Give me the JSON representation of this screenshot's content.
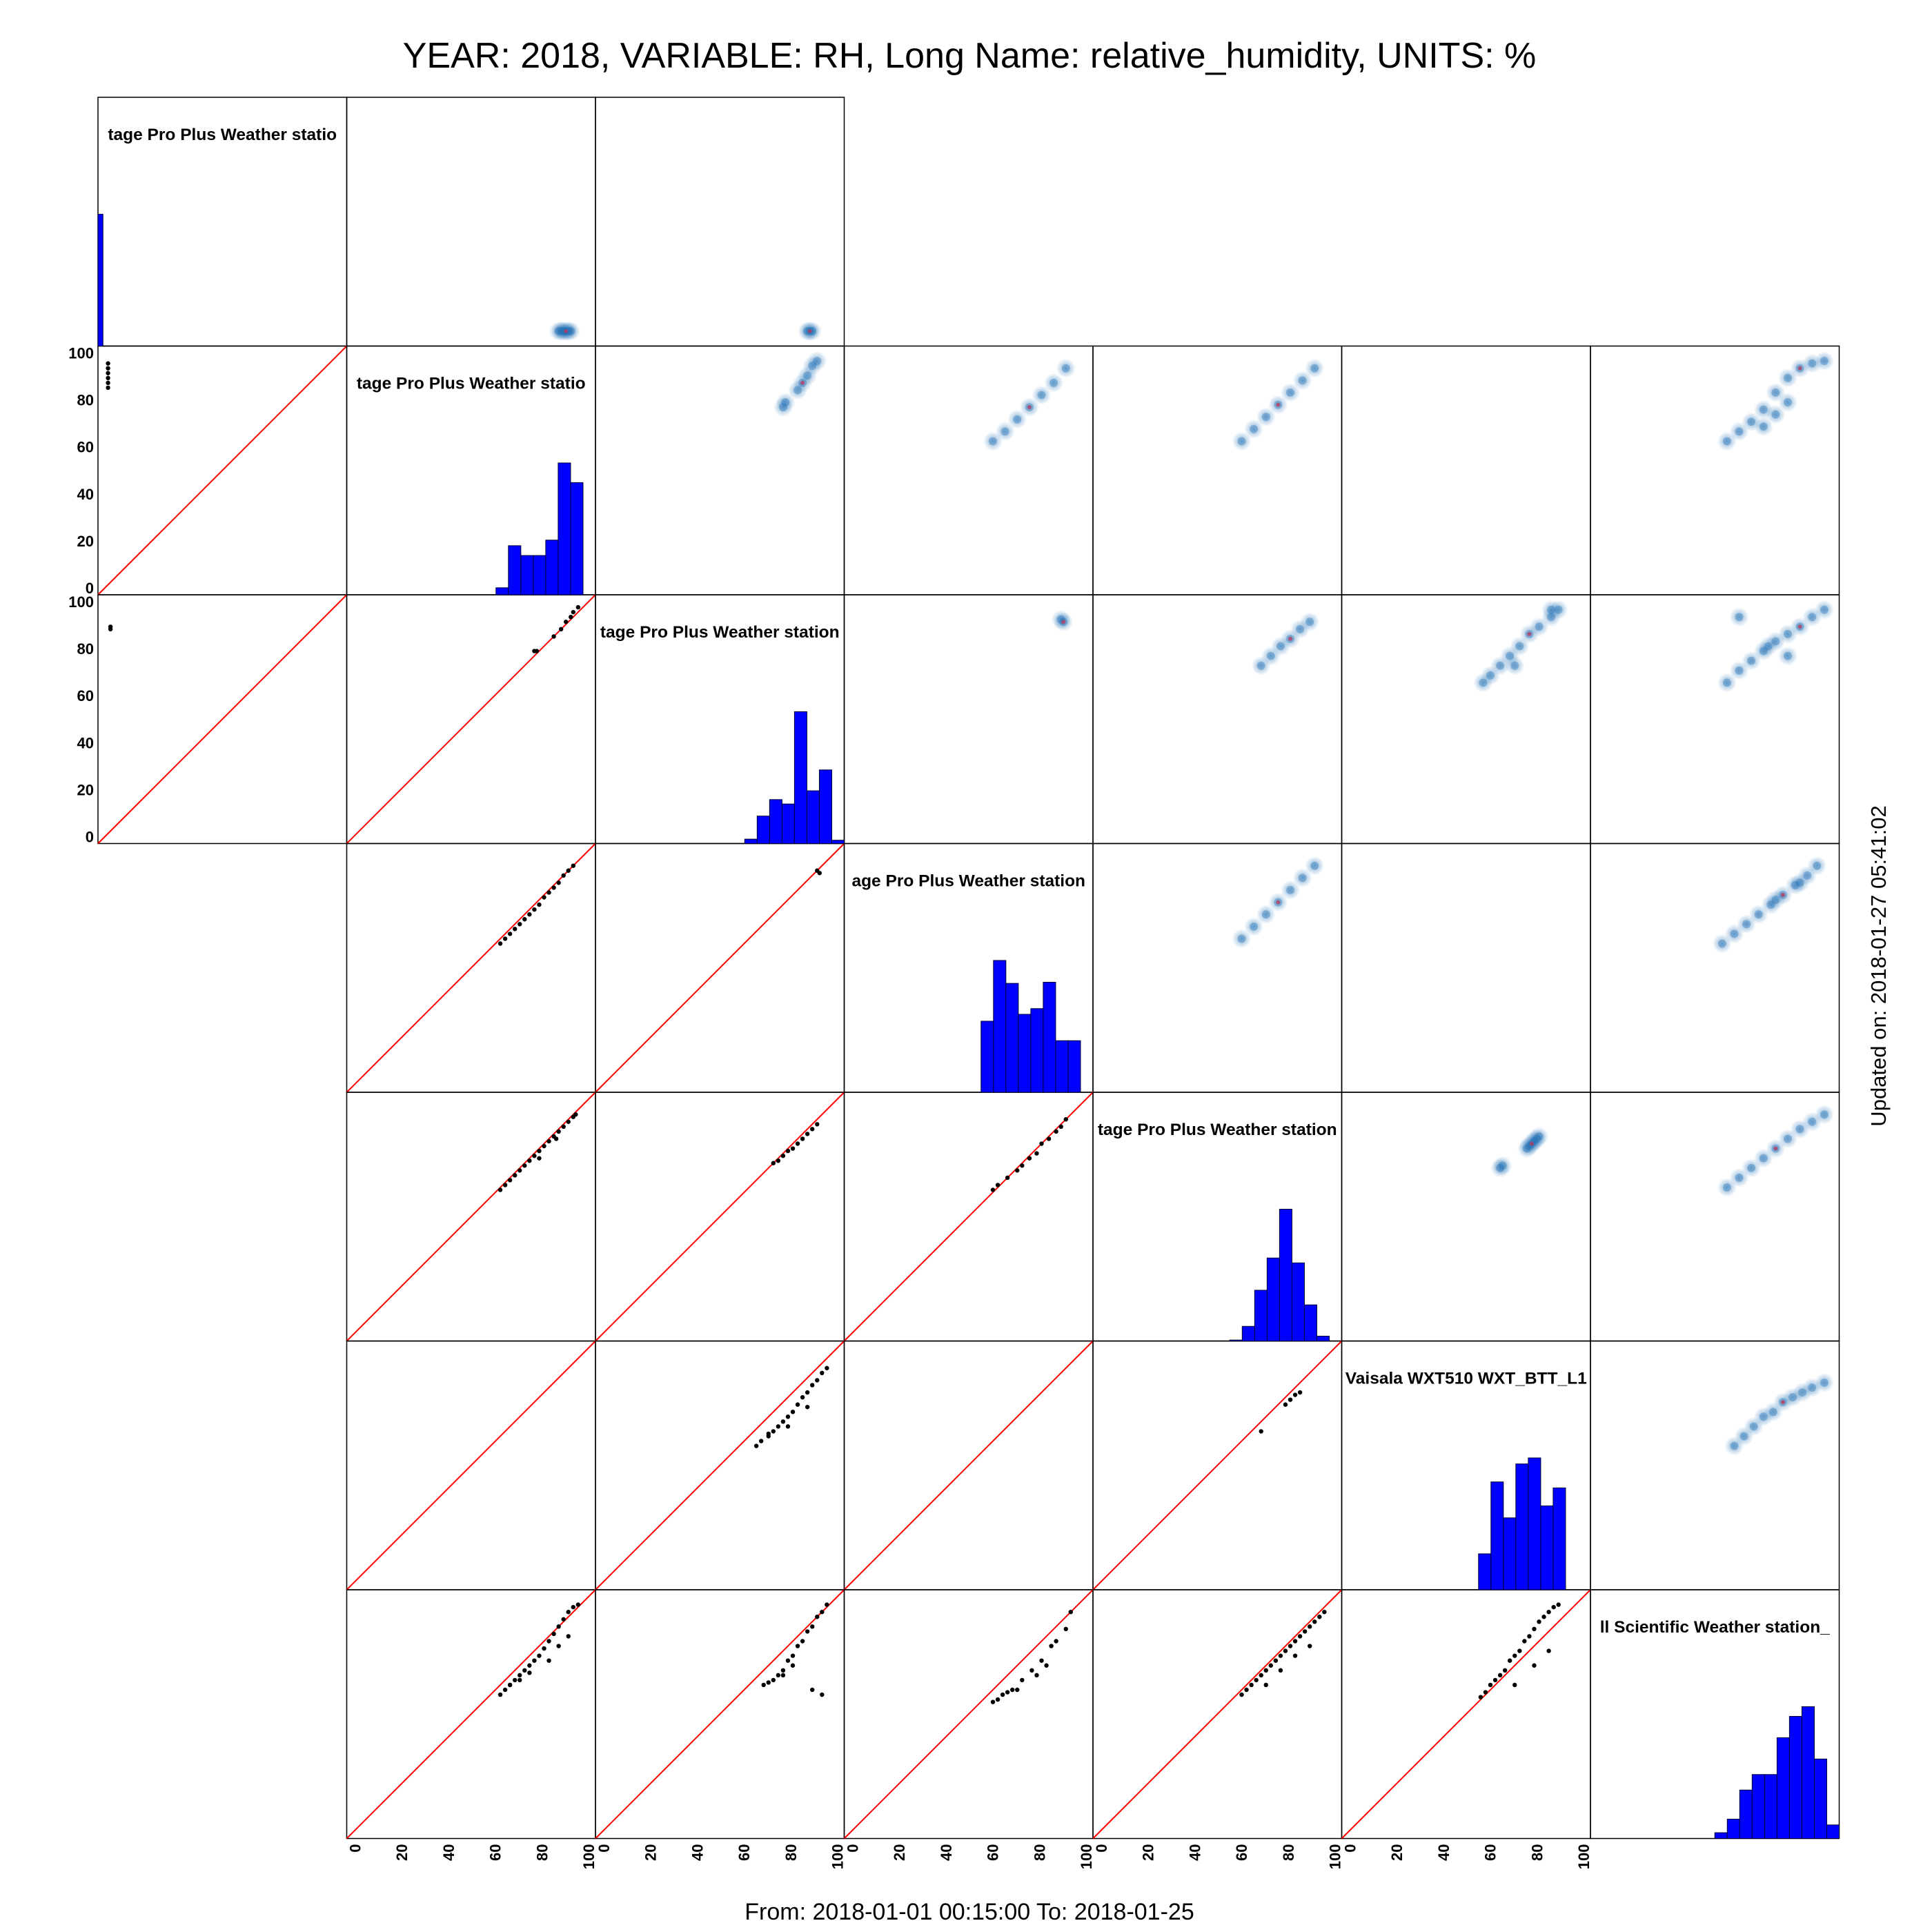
{
  "title": "YEAR: 2018, VARIABLE: RH, Long Name: relative_humidity, UNITS: %",
  "footer": "From: 2018-01-01 00:15:00 To: 2018-01-25",
  "updated": "Updated on: 2018-01-27 05:41:02",
  "colors": {
    "hist_fill": "#0000ff",
    "hist_stroke": "#000033",
    "identity_line": "#ff0000",
    "density": "#1f6fb4",
    "density_core": "#c0335a",
    "points": "#000000"
  },
  "chart_data": {
    "type": "scatter",
    "subtype": "scatter-plot-matrix",
    "size": 7,
    "diagonal": "histogram",
    "lower_triangle": "scatter points with 1:1 line",
    "upper_triangle": "smoothed density scatter",
    "axis_range": [
      0,
      100
    ],
    "left_ticks": [
      "0",
      "20",
      "40",
      "60",
      "80",
      "100"
    ],
    "bottom_ticks": [
      "0",
      "20",
      "40",
      "60",
      "80",
      "100"
    ],
    "station_labels": [
      "tage Pro Plus Weather statio",
      "tage Pro Plus Weather statio",
      "tage Pro Plus Weather station",
      "age Pro Plus Weather station",
      "tage Pro Plus Weather station",
      "Vaisala WXT510 WXT_BTT_L1",
      "ll Scientific  Weather station_"
    ],
    "histograms": [
      {
        "bins": [
          0,
          2
        ],
        "values": [
          1
        ]
      },
      {
        "bins": [
          60,
          65,
          70,
          75,
          80,
          85,
          90,
          95
        ],
        "values": [
          5,
          35,
          28,
          28,
          39,
          94,
          80
        ]
      },
      {
        "bins": [
          60,
          65,
          70,
          75,
          80,
          85,
          90,
          95,
          100
        ],
        "values": [
          4,
          25,
          40,
          36,
          120,
          48,
          67,
          3
        ]
      },
      {
        "bins": [
          55,
          60,
          65,
          70,
          75,
          80,
          85,
          90,
          95
        ],
        "values": [
          62,
          115,
          95,
          68,
          73,
          96,
          45,
          45
        ]
      },
      {
        "bins": [
          55,
          60,
          65,
          70,
          75,
          80,
          85,
          90,
          95
        ],
        "values": [
          1,
          15,
          52,
          85,
          135,
          80,
          37,
          5
        ]
      },
      {
        "bins": [
          55,
          60,
          65,
          70,
          75,
          80,
          85,
          90
        ],
        "values": [
          30,
          90,
          60,
          105,
          110,
          70,
          85
        ]
      },
      {
        "bins": [
          50,
          55,
          60,
          65,
          70,
          75,
          80,
          85,
          90,
          95,
          100
        ],
        "values": [
          3,
          10,
          25,
          33,
          33,
          52,
          63,
          68,
          41,
          7
        ]
      }
    ],
    "cells": [
      {
        "row": 0,
        "col": 1,
        "kind": "density",
        "x": [
          86,
          87,
          88,
          89,
          90,
          91
        ],
        "y": [
          5,
          5,
          5,
          5,
          5,
          5
        ]
      },
      {
        "row": 0,
        "col": 2,
        "kind": "density",
        "x": [
          86,
          87,
          88
        ],
        "y": [
          5,
          5,
          5
        ]
      },
      {
        "row": 1,
        "col": 0,
        "kind": "scatter",
        "x": [
          3,
          3,
          3,
          3,
          3,
          3
        ],
        "y": [
          84,
          86,
          88,
          90,
          92,
          94
        ]
      },
      {
        "row": 1,
        "col": 2,
        "kind": "density",
        "x": [
          76,
          77,
          82,
          84,
          86,
          88,
          90
        ],
        "y": [
          76,
          78,
          83,
          86,
          89,
          93,
          95
        ]
      },
      {
        "row": 1,
        "col": 3,
        "kind": "density",
        "x": [
          60,
          65,
          70,
          75,
          80,
          85,
          90
        ],
        "y": [
          62,
          66,
          71,
          76,
          81,
          86,
          92
        ]
      },
      {
        "row": 1,
        "col": 4,
        "kind": "density",
        "x": [
          60,
          65,
          70,
          75,
          80,
          85,
          90
        ],
        "y": [
          62,
          67,
          72,
          77,
          82,
          87,
          92
        ]
      },
      {
        "row": 1,
        "col": 6,
        "kind": "density",
        "x": [
          55,
          60,
          65,
          70,
          75,
          80,
          85,
          90,
          95,
          70,
          75,
          80
        ],
        "y": [
          62,
          66,
          70,
          75,
          82,
          88,
          92,
          94,
          95,
          68,
          73,
          78
        ]
      },
      {
        "row": 2,
        "col": 0,
        "kind": "scatter",
        "x": [
          4,
          4
        ],
        "y": [
          87,
          88
        ]
      },
      {
        "row": 2,
        "col": 1,
        "kind": "scatter",
        "x": [
          76,
          77,
          84,
          87,
          89,
          91,
          92,
          94
        ],
        "y": [
          78,
          78,
          84,
          87,
          90,
          92,
          94,
          96
        ]
      },
      {
        "row": 2,
        "col": 3,
        "kind": "density",
        "x": [
          88,
          89
        ],
        "y": [
          91,
          90
        ]
      },
      {
        "row": 2,
        "col": 4,
        "kind": "density",
        "x": [
          68,
          72,
          76,
          80,
          84,
          88
        ],
        "y": [
          72,
          76,
          80,
          83,
          87,
          90
        ]
      },
      {
        "row": 2,
        "col": 5,
        "kind": "density",
        "x": [
          57,
          60,
          64,
          68,
          72,
          76,
          80,
          85,
          88,
          70,
          85
        ],
        "y": [
          65,
          68,
          72,
          76,
          80,
          85,
          88,
          92,
          95,
          72,
          95
        ]
      },
      {
        "row": 2,
        "col": 6,
        "kind": "density",
        "x": [
          55,
          60,
          65,
          70,
          75,
          80,
          85,
          90,
          95,
          60,
          72,
          80
        ],
        "y": [
          65,
          70,
          74,
          78,
          82,
          85,
          88,
          92,
          95,
          92,
          80,
          76
        ]
      },
      {
        "row": 3,
        "col": 1,
        "kind": "scatter",
        "x": [
          62,
          64,
          66,
          68,
          70,
          72,
          74,
          76,
          78,
          80,
          82,
          84,
          86,
          88,
          90,
          92
        ],
        "y": [
          60,
          62,
          64,
          66,
          68,
          70,
          72,
          74,
          76,
          79,
          81,
          83,
          85,
          88,
          90,
          92
        ]
      },
      {
        "row": 3,
        "col": 2,
        "kind": "scatter",
        "x": [
          90,
          91
        ],
        "y": [
          90,
          89
        ]
      },
      {
        "row": 3,
        "col": 4,
        "kind": "density",
        "x": [
          60,
          65,
          70,
          75,
          80,
          85,
          90
        ],
        "y": [
          62,
          67,
          72,
          77,
          82,
          87,
          92
        ]
      },
      {
        "row": 3,
        "col": 6,
        "kind": "density",
        "x": [
          53,
          58,
          63,
          68,
          73,
          78,
          83,
          88,
          92,
          75,
          85
        ],
        "y": [
          60,
          64,
          68,
          72,
          76,
          80,
          84,
          88,
          92,
          78,
          85
        ]
      },
      {
        "row": 4,
        "col": 1,
        "kind": "scatter",
        "x": [
          62,
          64,
          66,
          68,
          70,
          72,
          74,
          76,
          78,
          80,
          82,
          84,
          86,
          88,
          90,
          92,
          93,
          85,
          78
        ],
        "y": [
          61,
          63,
          65,
          67,
          69,
          71,
          73,
          75,
          77,
          79,
          81,
          83,
          85,
          87,
          89,
          91,
          92,
          82,
          74
        ]
      },
      {
        "row": 4,
        "col": 2,
        "kind": "scatter",
        "x": [
          72,
          74,
          76,
          78,
          80,
          82,
          84,
          86,
          88,
          90
        ],
        "y": [
          72,
          73,
          75,
          77,
          78,
          80,
          82,
          84,
          86,
          88
        ]
      },
      {
        "row": 4,
        "col": 3,
        "kind": "scatter",
        "x": [
          60,
          62,
          66,
          70,
          72,
          75,
          78,
          80,
          83,
          86,
          88,
          90
        ],
        "y": [
          61,
          63,
          66,
          69,
          71,
          74,
          76,
          80,
          82,
          85,
          87,
          90
        ]
      },
      {
        "row": 4,
        "col": 5,
        "kind": "density",
        "x": [
          64,
          65,
          75,
          76,
          77,
          78,
          79,
          80
        ],
        "y": [
          70,
          71,
          78,
          79,
          80,
          81,
          82,
          83
        ]
      },
      {
        "row": 4,
        "col": 6,
        "kind": "density",
        "x": [
          55,
          60,
          65,
          70,
          75,
          80,
          85,
          90,
          95
        ],
        "y": [
          62,
          66,
          70,
          74,
          78,
          82,
          86,
          89,
          92
        ]
      },
      {
        "row": 5,
        "col": 2,
        "kind": "scatter",
        "x": [
          65,
          67,
          70,
          72,
          74,
          76,
          78,
          80,
          82,
          84,
          86,
          88,
          90,
          92,
          94,
          70,
          78,
          86
        ],
        "y": [
          58,
          60,
          63,
          64,
          66,
          68,
          70,
          72,
          75,
          78,
          80,
          83,
          85,
          88,
          90,
          62,
          66,
          74
        ]
      },
      {
        "row": 5,
        "col": 4,
        "kind": "scatter",
        "x": [
          68,
          78,
          80,
          82,
          84
        ],
        "y": [
          64,
          75,
          77,
          79,
          80
        ]
      },
      {
        "row": 5,
        "col": 6,
        "kind": "density",
        "x": [
          58,
          62,
          66,
          70,
          74,
          78,
          82,
          86,
          90,
          95
        ],
        "y": [
          58,
          62,
          66,
          70,
          72,
          76,
          78,
          80,
          82,
          84
        ]
      },
      {
        "row": 6,
        "col": 1,
        "kind": "scatter",
        "x": [
          62,
          64,
          66,
          68,
          70,
          72,
          74,
          76,
          78,
          80,
          82,
          84,
          86,
          88,
          90,
          92,
          94,
          82,
          86,
          90,
          66,
          70,
          74
        ],
        "y": [
          58,
          60,
          62,
          64,
          66,
          68,
          70,
          72,
          74,
          77,
          80,
          83,
          86,
          89,
          92,
          94,
          95,
          72,
          78,
          82,
          62,
          64,
          67
        ]
      },
      {
        "row": 6,
        "col": 2,
        "kind": "scatter",
        "x": [
          68,
          70,
          72,
          74,
          76,
          78,
          80,
          82,
          84,
          86,
          88,
          90,
          92,
          94,
          88,
          92,
          76,
          80
        ],
        "y": [
          62,
          63,
          64,
          66,
          68,
          72,
          74,
          78,
          80,
          84,
          86,
          90,
          92,
          95,
          60,
          58,
          66,
          70
        ]
      },
      {
        "row": 6,
        "col": 3,
        "kind": "scatter",
        "x": [
          60,
          62,
          64,
          66,
          68,
          72,
          76,
          80,
          84,
          86,
          90,
          92,
          70,
          78,
          82
        ],
        "y": [
          55,
          56,
          58,
          59,
          60,
          64,
          68,
          72,
          78,
          80,
          85,
          92,
          60,
          66,
          70
        ]
      },
      {
        "row": 6,
        "col": 4,
        "kind": "scatter",
        "x": [
          60,
          62,
          64,
          66,
          68,
          70,
          72,
          74,
          76,
          78,
          80,
          82,
          84,
          86,
          88,
          90,
          92,
          94,
          70,
          76,
          82,
          88
        ],
        "y": [
          58,
          60,
          62,
          64,
          66,
          68,
          70,
          72,
          74,
          76,
          78,
          80,
          82,
          84,
          86,
          88,
          90,
          92,
          62,
          68,
          74,
          78
        ]
      },
      {
        "row": 6,
        "col": 5,
        "kind": "scatter",
        "x": [
          56,
          58,
          60,
          62,
          64,
          66,
          68,
          70,
          72,
          74,
          76,
          78,
          80,
          82,
          84,
          86,
          88,
          70,
          78,
          84
        ],
        "y": [
          57,
          59,
          62,
          64,
          66,
          68,
          72,
          74,
          76,
          80,
          82,
          85,
          88,
          90,
          92,
          94,
          95,
          62,
          70,
          76
        ]
      }
    ]
  }
}
